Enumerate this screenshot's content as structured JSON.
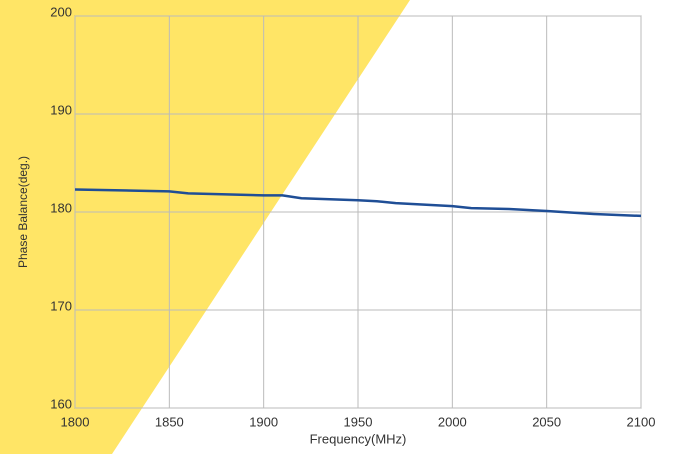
{
  "chart_data": {
    "type": "line",
    "x_label": "Frequency(MHz)",
    "y_label": "Phase Balance(deg.)",
    "x": [
      1800,
      1850,
      1860,
      1900,
      1910,
      1920,
      1950,
      1960,
      1970,
      2000,
      2010,
      2030,
      2050,
      2075,
      2100
    ],
    "series": [
      {
        "name": "Phase Balance",
        "color": "#1f4e96",
        "values": [
          182.3,
          182.1,
          181.9,
          181.7,
          181.7,
          181.4,
          181.2,
          181.1,
          180.9,
          180.6,
          180.4,
          180.3,
          180.1,
          179.8,
          179.6
        ]
      }
    ],
    "xlim": [
      1800,
      2100
    ],
    "xticks": [
      1800,
      1850,
      1900,
      1950,
      2000,
      2050,
      2100
    ],
    "ylim": [
      160,
      200
    ],
    "yticks": [
      160,
      170,
      180,
      190,
      200
    ],
    "grid": true
  }
}
